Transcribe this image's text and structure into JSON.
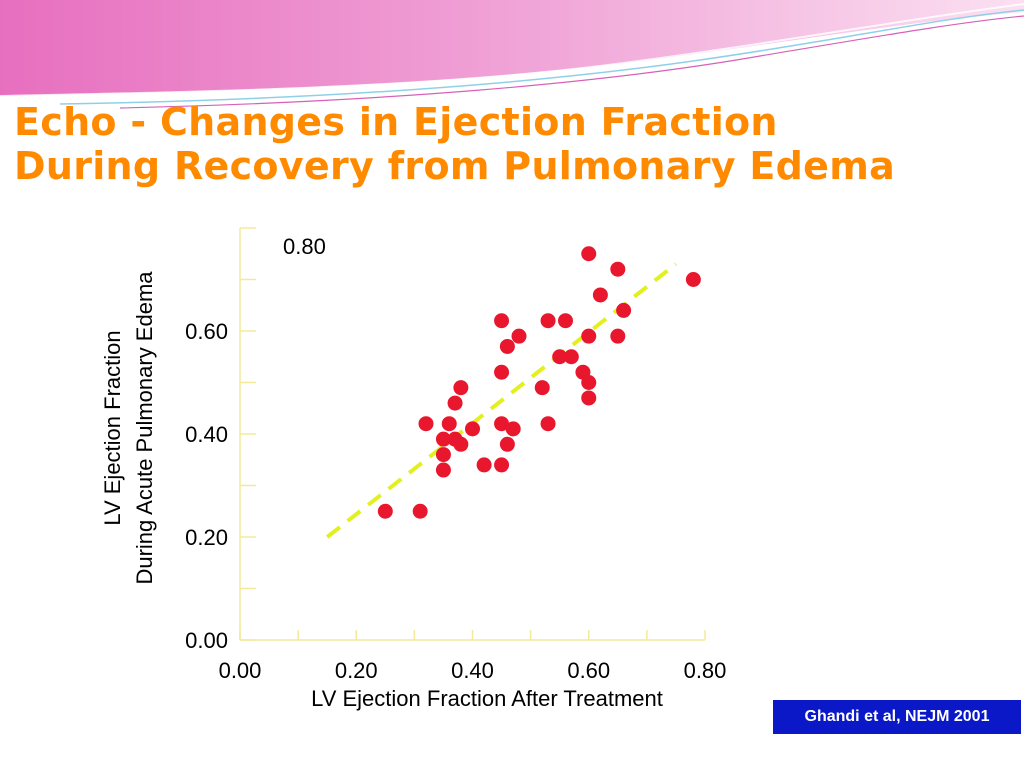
{
  "slide": {
    "title_line1": "Echo - Changes in Ejection Fraction",
    "title_line2": "During Recovery from Pulmonary Edema",
    "citation": "Ghandi et al, NEJM 2001"
  },
  "colors": {
    "title": "#ff8a00",
    "points": "#e8172e",
    "trend_line": "#e3f020",
    "citation_bg": "#0a18c8",
    "banner": "#e88fc8"
  },
  "chart_data": {
    "type": "scatter",
    "title": "",
    "xlabel": "LV Ejection Fraction After Treatment",
    "ylabel_lines": [
      "LV Ejection Fraction",
      "During Acute Pulmonary Edema"
    ],
    "xlim": [
      0,
      0.8
    ],
    "ylim": [
      0,
      0.8
    ],
    "x_ticks": [
      {
        "value": 0.0,
        "label": "0.00"
      },
      {
        "value": 0.2,
        "label": "0.20"
      },
      {
        "value": 0.4,
        "label": "0.40"
      },
      {
        "value": 0.6,
        "label": "0.60"
      },
      {
        "value": 0.8,
        "label": "0.80"
      }
    ],
    "y_ticks": [
      {
        "value": 0.0,
        "label": "0.00"
      },
      {
        "value": 0.2,
        "label": "0.20"
      },
      {
        "value": 0.4,
        "label": "0.40"
      },
      {
        "value": 0.6,
        "label": "0.60"
      },
      {
        "value": 0.8,
        "label": "0.80"
      }
    ],
    "grid": false,
    "points": [
      [
        0.25,
        0.25
      ],
      [
        0.31,
        0.25
      ],
      [
        0.32,
        0.42
      ],
      [
        0.35,
        0.33
      ],
      [
        0.35,
        0.36
      ],
      [
        0.35,
        0.39
      ],
      [
        0.36,
        0.42
      ],
      [
        0.37,
        0.39
      ],
      [
        0.37,
        0.46
      ],
      [
        0.38,
        0.38
      ],
      [
        0.38,
        0.49
      ],
      [
        0.4,
        0.41
      ],
      [
        0.42,
        0.34
      ],
      [
        0.45,
        0.34
      ],
      [
        0.45,
        0.42
      ],
      [
        0.45,
        0.52
      ],
      [
        0.45,
        0.62
      ],
      [
        0.46,
        0.38
      ],
      [
        0.46,
        0.57
      ],
      [
        0.47,
        0.41
      ],
      [
        0.48,
        0.59
      ],
      [
        0.52,
        0.49
      ],
      [
        0.53,
        0.42
      ],
      [
        0.53,
        0.62
      ],
      [
        0.55,
        0.55
      ],
      [
        0.56,
        0.62
      ],
      [
        0.57,
        0.55
      ],
      [
        0.59,
        0.52
      ],
      [
        0.6,
        0.47
      ],
      [
        0.6,
        0.5
      ],
      [
        0.6,
        0.59
      ],
      [
        0.6,
        0.75
      ],
      [
        0.62,
        0.67
      ],
      [
        0.65,
        0.59
      ],
      [
        0.65,
        0.72
      ],
      [
        0.66,
        0.64
      ],
      [
        0.78,
        0.7
      ]
    ],
    "trend_line": [
      [
        0.15,
        0.2
      ],
      [
        0.75,
        0.73
      ]
    ]
  }
}
